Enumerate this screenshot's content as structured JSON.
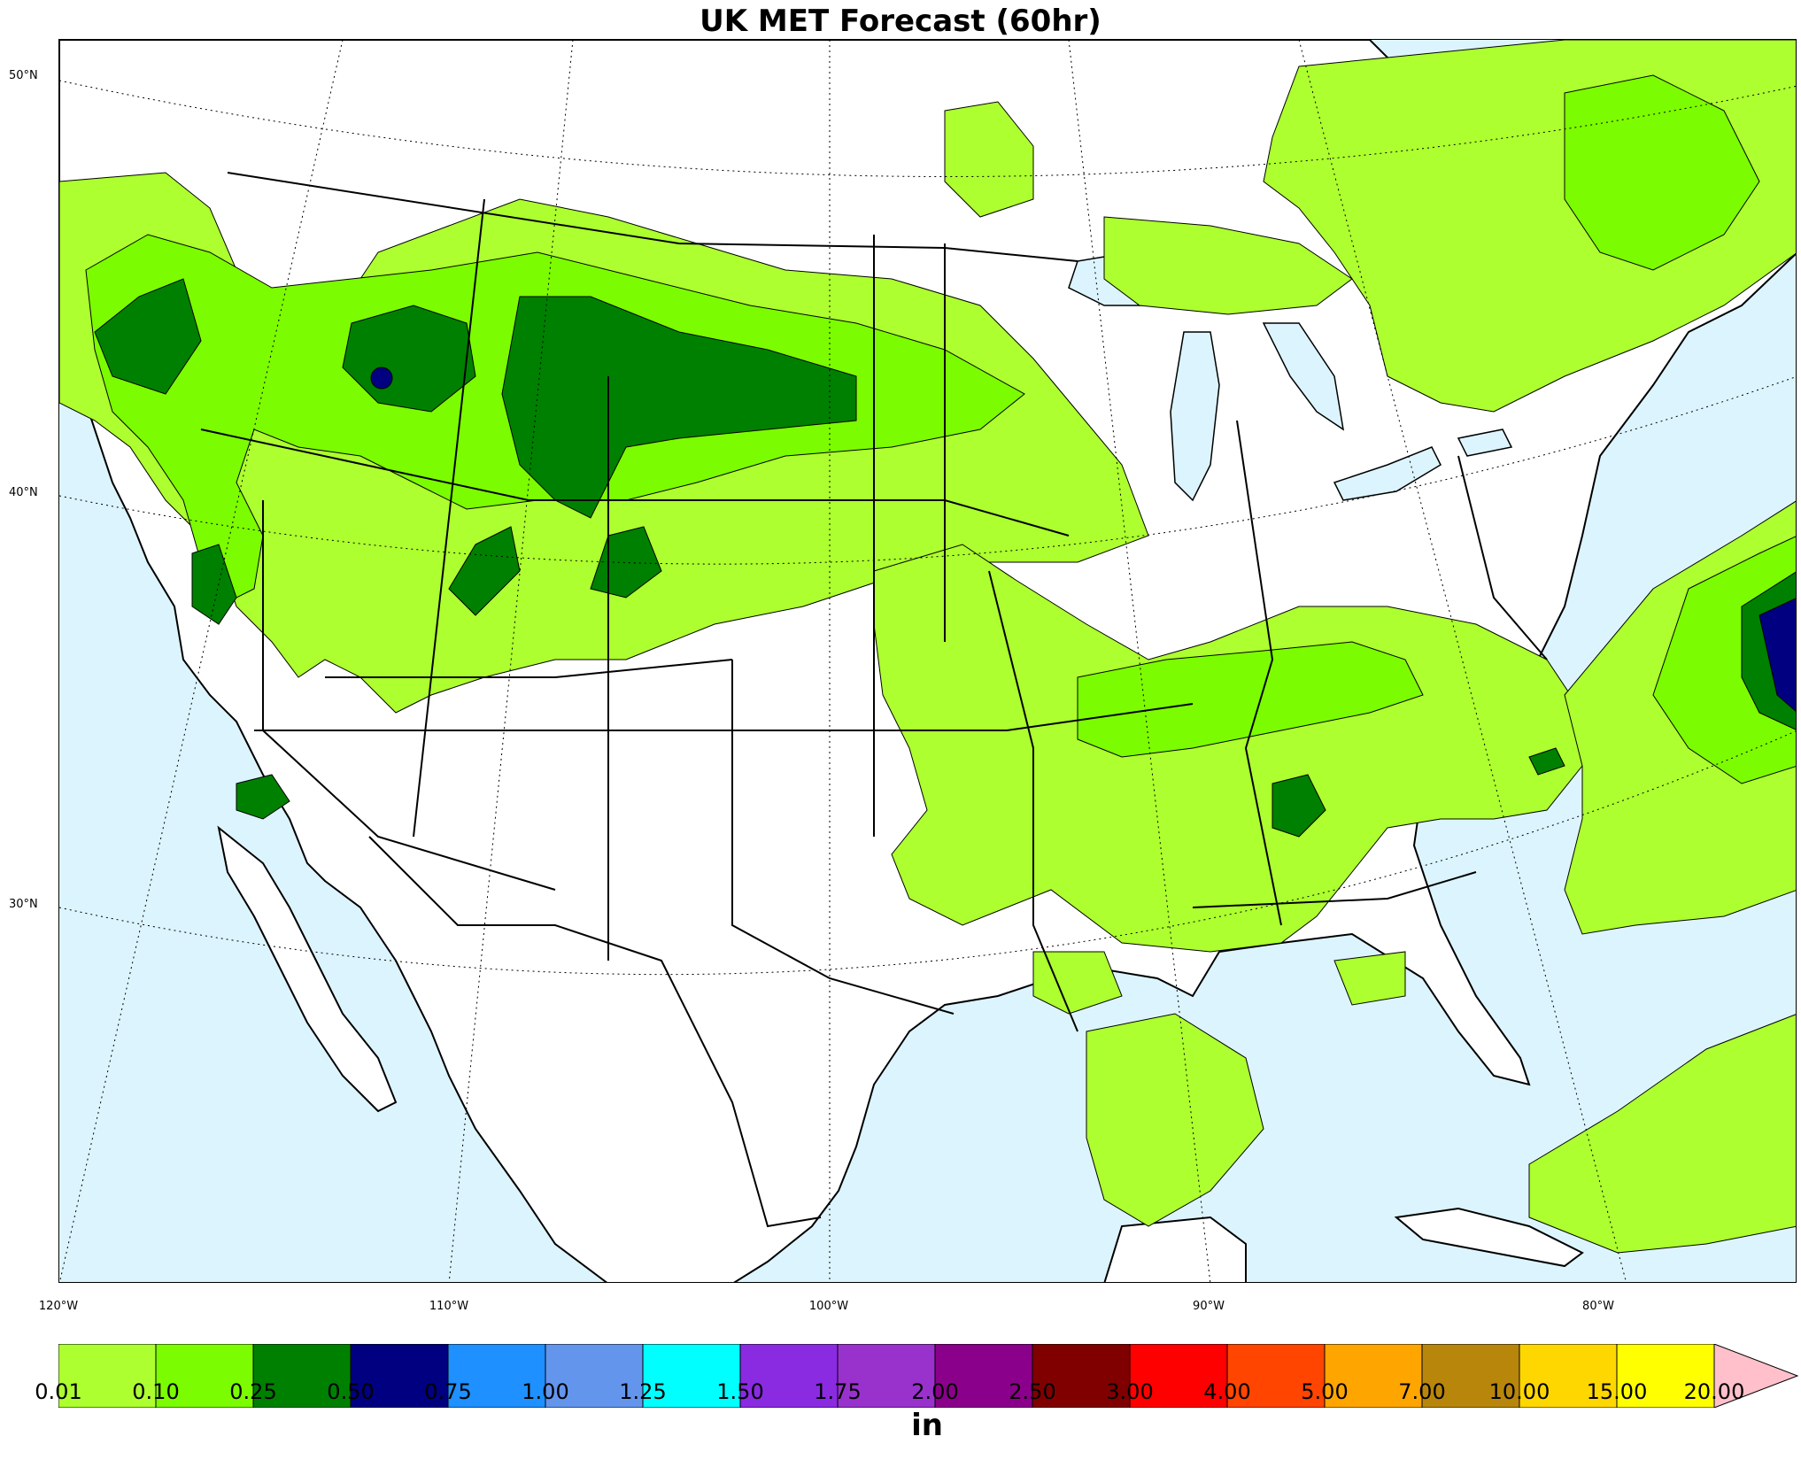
{
  "title": "UK MET Forecast (60hr)",
  "map": {
    "latitude_labels": [
      "50°N",
      "40°N",
      "30°N"
    ],
    "longitude_labels": [
      "120°W",
      "110°W",
      "100°W",
      "90°W",
      "80°W"
    ],
    "colors": {
      "ocean": "#dcf4fd",
      "land": "#ffffff",
      "border": "#000000"
    }
  },
  "colorbar": {
    "unit": "in",
    "ticks": [
      "0.01",
      "0.10",
      "0.25",
      "0.50",
      "0.75",
      "1.00",
      "1.25",
      "1.50",
      "1.75",
      "2.00",
      "2.50",
      "3.00",
      "4.00",
      "5.00",
      "7.00",
      "10.00",
      "15.00",
      "20.00"
    ],
    "colors": [
      "#adff2f",
      "#7cfc00",
      "#008000",
      "#000080",
      "#1e90ff",
      "#6495ed",
      "#00ffff",
      "#8a2be2",
      "#9932cc",
      "#8b008b",
      "#800000",
      "#ff0000",
      "#ff4500",
      "#ffa500",
      "#b8860b",
      "#ffd700",
      "#ffff00"
    ],
    "extend_color": "#ffc0cb"
  }
}
